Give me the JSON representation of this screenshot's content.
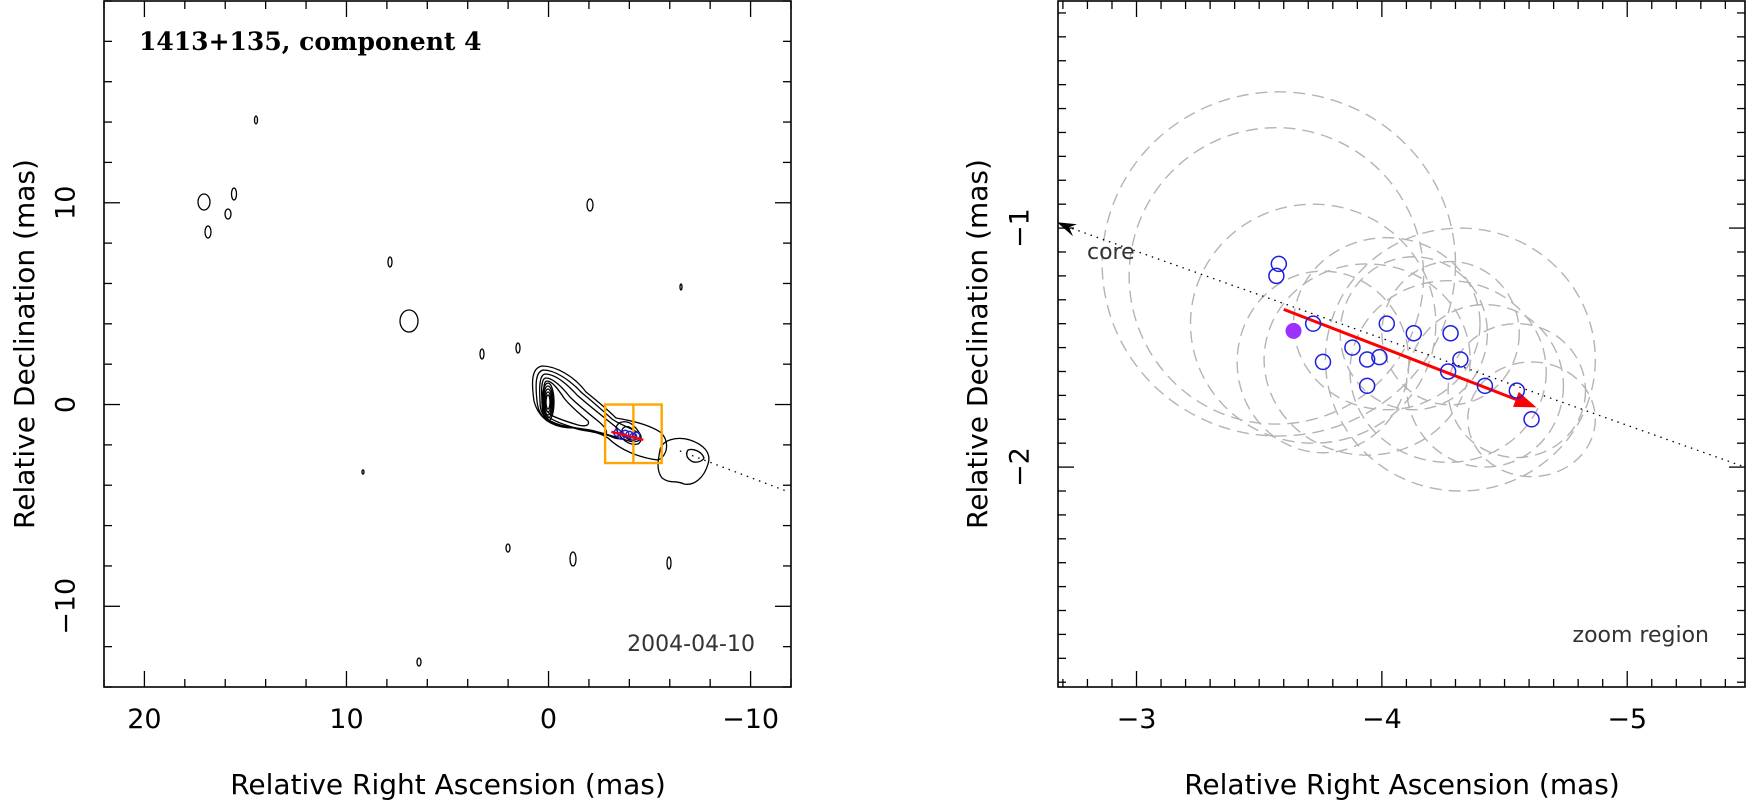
{
  "chart_data": [
    {
      "type": "contour",
      "title": "1413+135, component 4",
      "date_label": "2004-04-10",
      "xlabel": "Relative Right Ascension (mas)",
      "ylabel": "Relative Declination (mas)",
      "xlim": [
        22,
        -12
      ],
      "ylim": [
        -14,
        20
      ],
      "x_ticks": [
        20,
        10,
        0,
        -10
      ],
      "y_ticks": [
        10,
        0,
        -10
      ],
      "x_tick_labels": [
        "20",
        "10",
        "0",
        "−10"
      ],
      "y_tick_labels": [
        "10",
        "0",
        "−10"
      ],
      "zoom_box": {
        "x": [
          -2.8,
          -5.6
        ],
        "y": [
          0.0,
          -2.9
        ]
      },
      "ridge_line": [
        [
          -6.5,
          -2.3
        ],
        [
          -11.8,
          -4.3
        ]
      ],
      "component_fit": {
        "x": -3.9,
        "y": -1.5
      },
      "colors": {
        "contour": "#000000",
        "zoom_box": "#ffa500",
        "component": "#1f1fe0",
        "vector": "#ff0000"
      }
    },
    {
      "type": "scatter",
      "annotation": "zoom region",
      "core_label": "core",
      "xlabel": "Relative Right Ascension (mas)",
      "ylabel": "Relative Declination (mas)",
      "xlim": [
        -2.68,
        -5.48
      ],
      "ylim": [
        -2.92,
        -0.05
      ],
      "x_ticks": [
        -3,
        -4,
        -5
      ],
      "y_ticks": [
        -1,
        -2
      ],
      "x_tick_labels": [
        "−3",
        "−4",
        "−5"
      ],
      "y_tick_labels": [
        "−1",
        "−2"
      ],
      "component_positions": [
        {
          "x": -3.58,
          "y": -1.15
        },
        {
          "x": -3.57,
          "y": -1.2
        },
        {
          "x": -3.72,
          "y": -1.4
        },
        {
          "x": -3.76,
          "y": -1.56
        },
        {
          "x": -3.88,
          "y": -1.5
        },
        {
          "x": -3.94,
          "y": -1.55
        },
        {
          "x": -3.99,
          "y": -1.54
        },
        {
          "x": -3.94,
          "y": -1.66
        },
        {
          "x": -4.02,
          "y": -1.4
        },
        {
          "x": -4.13,
          "y": -1.44
        },
        {
          "x": -4.27,
          "y": -1.6
        },
        {
          "x": -4.28,
          "y": -1.44
        },
        {
          "x": -4.32,
          "y": -1.55
        },
        {
          "x": -4.42,
          "y": -1.66
        },
        {
          "x": -4.55,
          "y": -1.68
        },
        {
          "x": -4.61,
          "y": -1.8
        }
      ],
      "highlighted_position": {
        "x": -3.64,
        "y": -1.43
      },
      "fit_ellipses": [
        {
          "x": -3.58,
          "y": -1.15,
          "rx": 0.72,
          "ry": 0.72
        },
        {
          "x": -3.57,
          "y": -1.2,
          "rx": 0.6,
          "ry": 0.62
        },
        {
          "x": -3.72,
          "y": -1.4,
          "rx": 0.5,
          "ry": 0.5
        },
        {
          "x": -3.76,
          "y": -1.56,
          "rx": 0.35,
          "ry": 0.38
        },
        {
          "x": -3.94,
          "y": -1.55,
          "rx": 0.42,
          "ry": 0.4
        },
        {
          "x": -4.02,
          "y": -1.4,
          "rx": 0.38,
          "ry": 0.36
        },
        {
          "x": -4.13,
          "y": -1.44,
          "rx": 0.3,
          "ry": 0.32
        },
        {
          "x": -4.27,
          "y": -1.6,
          "rx": 0.4,
          "ry": 0.38
        },
        {
          "x": -4.28,
          "y": -1.44,
          "rx": 0.28,
          "ry": 0.3
        },
        {
          "x": -4.42,
          "y": -1.66,
          "rx": 0.32,
          "ry": 0.34
        },
        {
          "x": -4.55,
          "y": -1.68,
          "rx": 0.28,
          "ry": 0.28
        },
        {
          "x": -4.61,
          "y": -1.8,
          "rx": 0.26,
          "ry": 0.24
        },
        {
          "x": -4.32,
          "y": -1.55,
          "rx": 0.55,
          "ry": 0.55
        }
      ],
      "motion_vector": {
        "from": {
          "x": -3.6,
          "y": -1.34
        },
        "to": {
          "x": -4.63,
          "y": -1.75
        }
      },
      "ridge_line": [
        [
          -2.68,
          -0.98
        ],
        [
          -5.48,
          -2.0
        ]
      ],
      "colors": {
        "ellipse": "#b4b4b4",
        "component": "#1f1fe0",
        "highlight": "#9b30ff",
        "vector": "#ff0000"
      }
    }
  ]
}
